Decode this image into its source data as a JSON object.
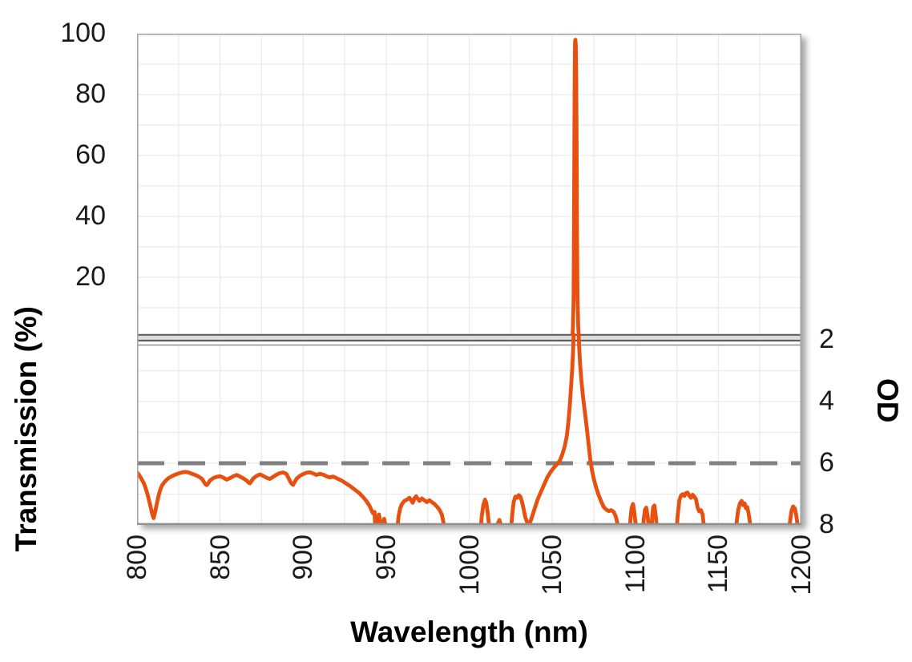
{
  "figure": {
    "xlabel": "Wavelength (nm)",
    "ylabel_top": "Transmission (%)",
    "ylabel_right": "OD"
  },
  "chart_data": {
    "type": "line",
    "title": "",
    "description": "Laser-line filter spectrum with broken y-axis: top panel linear Transmission (%), bottom panel inverted Optical Density (OD 2 at top to OD 8 at bottom). Narrow transmission peak at ~1064 nm; dashed reference line at OD 6.",
    "xlabel": "Wavelength (nm)",
    "xlim": [
      800,
      1200
    ],
    "x_major_ticks": [
      800,
      850,
      900,
      950,
      1000,
      1050,
      1100,
      1150,
      1200
    ],
    "x_minor_grid_step_nm": 25,
    "top_panel": {
      "ylabel": "Transmission (%)",
      "ylim": [
        0,
        100
      ],
      "tick_values": [
        100,
        80,
        60,
        40,
        20
      ],
      "grid_step_pct": 10
    },
    "bottom_panel": {
      "ylabel": "OD",
      "ylim_top_to_bottom": [
        2,
        8
      ],
      "tick_values": [
        2,
        4,
        6,
        8
      ],
      "grid_step_od": 1,
      "inverted": true
    },
    "reference_line": {
      "panel": "bottom",
      "od": 6,
      "style": "dashed"
    },
    "peak": {
      "wavelength_nm": 1064,
      "max_transmission_pct": 98
    },
    "colors": {
      "series": "#E8500F",
      "dashed_reference": "#808080",
      "grid": "#ebebeb",
      "border": "#a6a6a6",
      "axis_bottom": "#8f8f8f",
      "text": "#1a1a1a",
      "break_fill": "#dcdcdc",
      "break_line": "#5f5f5f",
      "break_thin_line": "#8f8f8f"
    },
    "series": [
      {
        "name": "transmission-peak",
        "panel": "top",
        "points_nm_pct": [
          [
            1061.8,
            -2
          ],
          [
            1062.4,
            3
          ],
          [
            1062.8,
            12
          ],
          [
            1063.1,
            40
          ],
          [
            1063.35,
            70
          ],
          [
            1063.55,
            90
          ],
          [
            1063.75,
            97.5
          ],
          [
            1063.95,
            98
          ],
          [
            1064.15,
            96
          ],
          [
            1064.4,
            86
          ],
          [
            1064.65,
            64
          ],
          [
            1064.9,
            36
          ],
          [
            1065.2,
            14
          ],
          [
            1065.6,
            4
          ],
          [
            1066.2,
            -2
          ]
        ]
      },
      {
        "name": "od-blocking",
        "panel": "bottom",
        "note": "OD values greater than 8 indicate signal below the chart floor (off-scale)",
        "points_nm_od": [
          [
            800,
            6.3
          ],
          [
            801,
            6.36
          ],
          [
            802,
            6.44
          ],
          [
            803,
            6.54
          ],
          [
            804,
            6.64
          ],
          [
            805,
            6.78
          ],
          [
            806,
            6.95
          ],
          [
            807,
            7.15
          ],
          [
            808,
            7.38
          ],
          [
            809,
            7.62
          ],
          [
            810,
            7.78
          ],
          [
            811,
            7.55
          ],
          [
            812,
            7.28
          ],
          [
            813,
            7.05
          ],
          [
            814,
            6.86
          ],
          [
            815,
            6.72
          ],
          [
            817,
            6.58
          ],
          [
            819,
            6.48
          ],
          [
            821,
            6.42
          ],
          [
            823,
            6.37
          ],
          [
            825,
            6.33
          ],
          [
            827,
            6.3
          ],
          [
            829,
            6.28
          ],
          [
            831,
            6.3
          ],
          [
            833,
            6.34
          ],
          [
            835,
            6.38
          ],
          [
            837,
            6.43
          ],
          [
            839,
            6.5
          ],
          [
            840,
            6.58
          ],
          [
            841,
            6.67
          ],
          [
            842,
            6.71
          ],
          [
            843,
            6.64
          ],
          [
            844,
            6.55
          ],
          [
            846,
            6.48
          ],
          [
            848,
            6.44
          ],
          [
            850,
            6.42
          ],
          [
            852,
            6.47
          ],
          [
            854,
            6.53
          ],
          [
            856,
            6.48
          ],
          [
            858,
            6.42
          ],
          [
            860,
            6.38
          ],
          [
            862,
            6.43
          ],
          [
            864,
            6.49
          ],
          [
            866,
            6.56
          ],
          [
            867,
            6.62
          ],
          [
            868,
            6.65
          ],
          [
            869,
            6.57
          ],
          [
            870,
            6.49
          ],
          [
            872,
            6.41
          ],
          [
            874,
            6.36
          ],
          [
            876,
            6.41
          ],
          [
            878,
            6.47
          ],
          [
            880,
            6.51
          ],
          [
            882,
            6.44
          ],
          [
            884,
            6.37
          ],
          [
            886,
            6.32
          ],
          [
            888,
            6.3
          ],
          [
            890,
            6.35
          ],
          [
            891,
            6.46
          ],
          [
            892,
            6.57
          ],
          [
            893,
            6.66
          ],
          [
            894,
            6.7
          ],
          [
            895,
            6.6
          ],
          [
            896,
            6.5
          ],
          [
            898,
            6.41
          ],
          [
            900,
            6.35
          ],
          [
            902,
            6.31
          ],
          [
            904,
            6.29
          ],
          [
            906,
            6.33
          ],
          [
            908,
            6.38
          ],
          [
            910,
            6.34
          ],
          [
            912,
            6.37
          ],
          [
            914,
            6.42
          ],
          [
            916,
            6.46
          ],
          [
            918,
            6.43
          ],
          [
            920,
            6.48
          ],
          [
            922,
            6.53
          ],
          [
            924,
            6.59
          ],
          [
            926,
            6.66
          ],
          [
            928,
            6.73
          ],
          [
            930,
            6.81
          ],
          [
            932,
            6.89
          ],
          [
            934,
            6.98
          ],
          [
            936,
            7.09
          ],
          [
            938,
            7.22
          ],
          [
            940,
            7.38
          ],
          [
            941,
            7.5
          ],
          [
            942,
            7.62
          ],
          [
            943,
            7.58
          ],
          [
            943.6,
            8.45
          ],
          [
            944.4,
            8.45
          ],
          [
            945,
            7.75
          ],
          [
            945.6,
            7.66
          ],
          [
            946.2,
            7.82
          ],
          [
            946.8,
            8.45
          ],
          [
            947.6,
            8.45
          ],
          [
            948.2,
            7.95
          ],
          [
            948.8,
            7.8
          ],
          [
            949.4,
            7.96
          ],
          [
            950,
            8.45
          ],
          [
            956,
            8.45
          ],
          [
            957.5,
            7.7
          ],
          [
            958.5,
            7.45
          ],
          [
            959.5,
            7.32
          ],
          [
            961,
            7.22
          ],
          [
            962.5,
            7.18
          ],
          [
            964,
            7.12
          ],
          [
            965,
            7.2
          ],
          [
            966,
            7.28
          ],
          [
            967,
            7.14
          ],
          [
            968,
            7.07
          ],
          [
            969,
            7.15
          ],
          [
            970,
            7.22
          ],
          [
            971.5,
            7.14
          ],
          [
            973,
            7.2
          ],
          [
            974.5,
            7.26
          ],
          [
            976,
            7.2
          ],
          [
            977.5,
            7.26
          ],
          [
            979,
            7.32
          ],
          [
            980.5,
            7.4
          ],
          [
            982,
            7.5
          ],
          [
            983.5,
            7.66
          ],
          [
            984.5,
            7.92
          ],
          [
            985.5,
            8.45
          ],
          [
            1006.5,
            8.45
          ],
          [
            1007.5,
            7.75
          ],
          [
            1008.5,
            7.35
          ],
          [
            1009.5,
            7.18
          ],
          [
            1010.3,
            7.28
          ],
          [
            1011,
            7.55
          ],
          [
            1011.8,
            7.95
          ],
          [
            1012.8,
            8.45
          ],
          [
            1016.2,
            8.45
          ],
          [
            1017.2,
            7.96
          ],
          [
            1018.2,
            7.84
          ],
          [
            1019.2,
            8.05
          ],
          [
            1020.2,
            8.45
          ],
          [
            1024.8,
            8.45
          ],
          [
            1025.8,
            7.7
          ],
          [
            1026.8,
            7.25
          ],
          [
            1027.8,
            7.08
          ],
          [
            1028.8,
            7.12
          ],
          [
            1029.8,
            7.03
          ],
          [
            1030.8,
            7.08
          ],
          [
            1031.8,
            7.25
          ],
          [
            1032.8,
            7.5
          ],
          [
            1033.8,
            7.76
          ],
          [
            1035,
            7.93
          ],
          [
            1036.5,
            7.95
          ],
          [
            1038,
            7.7
          ],
          [
            1039.5,
            7.45
          ],
          [
            1041,
            7.2
          ],
          [
            1043,
            6.95
          ],
          [
            1045,
            6.7
          ],
          [
            1047,
            6.46
          ],
          [
            1049,
            6.28
          ],
          [
            1051,
            6.14
          ],
          [
            1053,
            6.02
          ],
          [
            1054.5,
            5.92
          ],
          [
            1056,
            5.72
          ],
          [
            1057.5,
            5.45
          ],
          [
            1058.8,
            5.1
          ],
          [
            1059.8,
            4.62
          ],
          [
            1060.6,
            4.1
          ],
          [
            1061.3,
            3.55
          ],
          [
            1062,
            2.95
          ],
          [
            1062.6,
            2.3
          ],
          [
            1063.1,
            1.4
          ],
          [
            1065.6,
            1.4
          ],
          [
            1066.2,
            2.25
          ],
          [
            1066.8,
            2.8
          ],
          [
            1067.5,
            3.3
          ],
          [
            1068.3,
            3.75
          ],
          [
            1069.2,
            4.15
          ],
          [
            1070.1,
            4.55
          ],
          [
            1071,
            4.95
          ],
          [
            1071.9,
            5.4
          ],
          [
            1072.8,
            5.85
          ],
          [
            1073.8,
            6.2
          ],
          [
            1075,
            6.5
          ],
          [
            1076.5,
            6.8
          ],
          [
            1078,
            7.05
          ],
          [
            1079.5,
            7.25
          ],
          [
            1081,
            7.42
          ],
          [
            1082.5,
            7.5
          ],
          [
            1084,
            7.55
          ],
          [
            1085.5,
            7.52
          ],
          [
            1087,
            7.58
          ],
          [
            1088.2,
            7.72
          ],
          [
            1089.2,
            7.95
          ],
          [
            1090,
            8.45
          ],
          [
            1096.3,
            8.45
          ],
          [
            1097.1,
            7.8
          ],
          [
            1097.8,
            7.45
          ],
          [
            1098.6,
            7.32
          ],
          [
            1099.3,
            7.55
          ],
          [
            1100.1,
            7.92
          ],
          [
            1100.9,
            8.45
          ],
          [
            1104.3,
            8.45
          ],
          [
            1105.1,
            7.8
          ],
          [
            1105.8,
            7.5
          ],
          [
            1106.6,
            7.44
          ],
          [
            1107.4,
            7.7
          ],
          [
            1108.2,
            8.1
          ],
          [
            1109,
            8.45
          ],
          [
            1109.6,
            8.45
          ],
          [
            1110.2,
            7.7
          ],
          [
            1110.8,
            7.42
          ],
          [
            1111.5,
            7.37
          ],
          [
            1112.2,
            7.65
          ],
          [
            1112.9,
            8.02
          ],
          [
            1113.6,
            8.45
          ],
          [
            1124.5,
            8.45
          ],
          [
            1125.5,
            7.7
          ],
          [
            1126.5,
            7.2
          ],
          [
            1127.5,
            7.05
          ],
          [
            1128.5,
            7.0
          ],
          [
            1129.5,
            7.06
          ],
          [
            1130.5,
            6.97
          ],
          [
            1131.5,
            6.95
          ],
          [
            1132.5,
            7.05
          ],
          [
            1133.5,
            7.12
          ],
          [
            1134.5,
            7.02
          ],
          [
            1135.5,
            7.08
          ],
          [
            1136.5,
            7.16
          ],
          [
            1137.5,
            7.44
          ],
          [
            1138.5,
            7.56
          ],
          [
            1139.5,
            7.52
          ],
          [
            1140.5,
            7.66
          ],
          [
            1141.3,
            8.02
          ],
          [
            1142,
            8.45
          ],
          [
            1160,
            8.45
          ],
          [
            1161,
            7.92
          ],
          [
            1162,
            7.5
          ],
          [
            1163,
            7.3
          ],
          [
            1164,
            7.22
          ],
          [
            1165,
            7.36
          ],
          [
            1165.8,
            7.3
          ],
          [
            1166.6,
            7.46
          ],
          [
            1167.4,
            7.42
          ],
          [
            1168.2,
            7.62
          ],
          [
            1169.1,
            7.95
          ],
          [
            1170,
            8.45
          ],
          [
            1192,
            8.45
          ],
          [
            1193,
            7.95
          ],
          [
            1194,
            7.55
          ],
          [
            1195,
            7.4
          ],
          [
            1196,
            7.46
          ],
          [
            1196.8,
            7.66
          ],
          [
            1197.6,
            7.95
          ],
          [
            1198.4,
            8.45
          ]
        ]
      }
    ]
  }
}
